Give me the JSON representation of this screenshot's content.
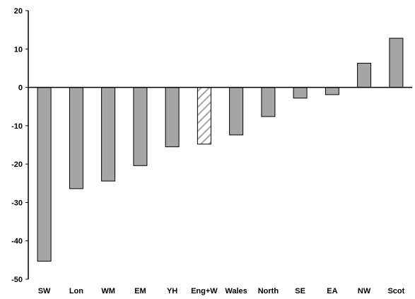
{
  "chart_data": {
    "type": "bar",
    "title": "",
    "xlabel": "",
    "ylabel": "",
    "ylim": [
      -50,
      20
    ],
    "yticks": [
      20,
      10,
      0,
      -10,
      -20,
      -30,
      -40,
      -50
    ],
    "grid": false,
    "legend": false,
    "categories": [
      "SW",
      "Lon",
      "WM",
      "EM",
      "YH",
      "Eng+W",
      "Wales",
      "North",
      "SE",
      "EA",
      "NW",
      "Scot"
    ],
    "values": [
      -45.3,
      -26.4,
      -24.4,
      -20.4,
      -15.5,
      -14.8,
      -12.4,
      -7.6,
      -2.8,
      -1.9,
      6.3,
      12.8
    ],
    "bar_styles": [
      "solid",
      "solid",
      "solid",
      "solid",
      "solid",
      "hatched",
      "solid",
      "solid",
      "solid",
      "solid",
      "solid",
      "solid"
    ],
    "colors": {
      "bar_fill": "#a6a6a6",
      "bar_stroke": "#000000",
      "hatch_stroke": "#a6a6a6",
      "axis": "#000000"
    }
  }
}
